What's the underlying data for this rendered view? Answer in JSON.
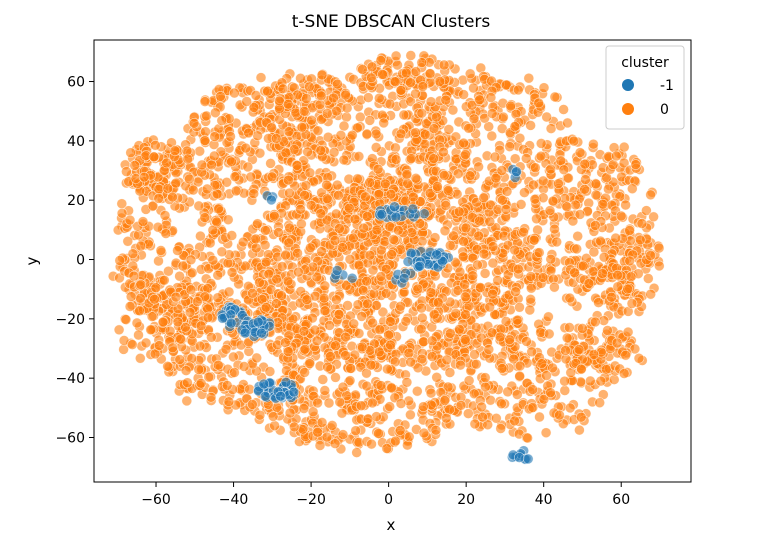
{
  "chart_data": {
    "type": "scatter",
    "title": "t-SNE DBSCAN Clusters",
    "xlabel": "x",
    "ylabel": "y",
    "xlim": [
      -76,
      78
    ],
    "ylim": [
      -75,
      74
    ],
    "xticks": [
      -60,
      -40,
      -20,
      0,
      20,
      40,
      60
    ],
    "yticks": [
      -60,
      -40,
      -20,
      0,
      20,
      40,
      60
    ],
    "grid": false,
    "legend": {
      "title": "cluster",
      "placement": "top-right",
      "entries": [
        {
          "label": "-1",
          "color": "#1f77b4"
        },
        {
          "label": "0",
          "color": "#ff7f0e"
        }
      ]
    },
    "series": [
      {
        "name": "0",
        "color": "#ff7f0e",
        "alpha": 0.6,
        "approx_points": 4000,
        "shape": "roughly elliptical cloud with dense core",
        "regions": [
          {
            "cx": 0,
            "cy": -5,
            "rx": 40,
            "ry": 32,
            "weight": 30
          },
          {
            "cx": -5,
            "cy": 35,
            "rx": 22,
            "ry": 28,
            "weight": 8
          },
          {
            "cx": 25,
            "cy": 40,
            "rx": 22,
            "ry": 25,
            "weight": 7
          },
          {
            "cx": -35,
            "cy": 40,
            "rx": 18,
            "ry": 20,
            "weight": 6
          },
          {
            "cx": -55,
            "cy": 5,
            "rx": 15,
            "ry": 32,
            "weight": 7
          },
          {
            "cx": 52,
            "cy": 12,
            "rx": 16,
            "ry": 30,
            "weight": 7
          },
          {
            "cx": -40,
            "cy": -30,
            "rx": 20,
            "ry": 20,
            "weight": 6
          },
          {
            "cx": 35,
            "cy": -40,
            "rx": 22,
            "ry": 20,
            "weight": 6
          },
          {
            "cx": -8,
            "cy": -50,
            "rx": 26,
            "ry": 14,
            "weight": 6
          },
          {
            "cx": 62,
            "cy": -5,
            "rx": 8,
            "ry": 14,
            "weight": 2
          },
          {
            "cx": -60,
            "cy": -20,
            "rx": 10,
            "ry": 15,
            "weight": 2
          },
          {
            "cx": 55,
            "cy": -30,
            "rx": 10,
            "ry": 10,
            "weight": 2
          },
          {
            "cx": -20,
            "cy": 55,
            "rx": 10,
            "ry": 8,
            "weight": 2
          },
          {
            "cx": 5,
            "cy": 62,
            "rx": 12,
            "ry": 6,
            "weight": 2
          },
          {
            "cx": -60,
            "cy": 30,
            "rx": 8,
            "ry": 10,
            "weight": 2
          }
        ]
      },
      {
        "name": "-1",
        "color": "#1f77b4",
        "alpha": 0.6,
        "regions": [
          {
            "cx": -40,
            "cy": -19,
            "rx": 3,
            "ry": 4,
            "count": 25
          },
          {
            "cx": -34,
            "cy": -23,
            "rx": 4,
            "ry": 3,
            "count": 30
          },
          {
            "cx": -28,
            "cy": -44,
            "rx": 6,
            "ry": 3,
            "count": 45
          },
          {
            "cx": 10,
            "cy": 0,
            "rx": 6,
            "ry": 3,
            "count": 40
          },
          {
            "cx": 2,
            "cy": 16,
            "rx": 8,
            "ry": 2,
            "count": 20
          },
          {
            "cx": 34,
            "cy": -66,
            "rx": 3,
            "ry": 2,
            "count": 10
          },
          {
            "cx": 33,
            "cy": 29,
            "rx": 2,
            "ry": 2,
            "count": 4
          },
          {
            "cx": -30,
            "cy": 21,
            "rx": 2,
            "ry": 1,
            "count": 3
          },
          {
            "cx": 4,
            "cy": -6,
            "rx": 3,
            "ry": 2,
            "count": 6
          },
          {
            "cx": -12,
            "cy": -6,
            "rx": 3,
            "ry": 3,
            "count": 5
          }
        ]
      }
    ]
  }
}
